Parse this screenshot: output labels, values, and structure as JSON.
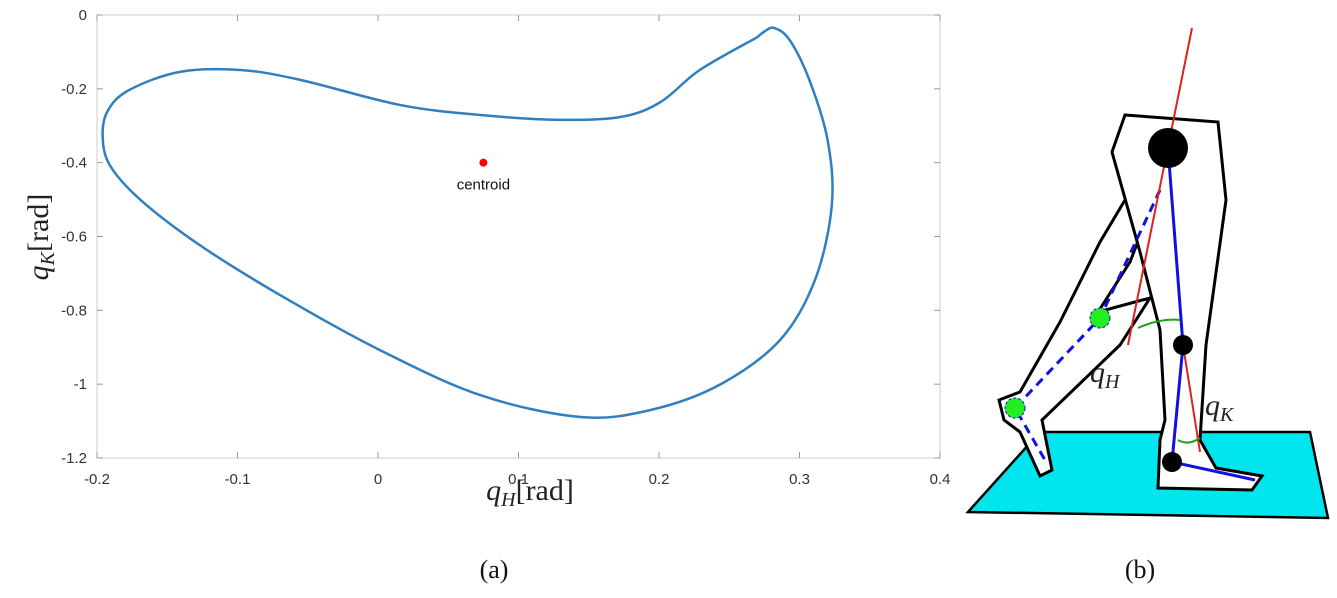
{
  "chart_data": {
    "type": "line",
    "x_label": {
      "symbol": "q",
      "subscript": "H",
      "unit": "[rad]"
    },
    "y_label": {
      "symbol": "q",
      "subscript": "K",
      "unit": "[rad]"
    },
    "series": [
      {
        "color": "#2f7fc1",
        "x": [
          0.27,
          0.229,
          0.201,
          0.173,
          0.13,
          0.073,
          0.016,
          -0.055,
          -0.098,
          -0.141,
          -0.177,
          -0.192,
          -0.196,
          -0.191,
          -0.169,
          -0.127,
          -0.07,
          0.001,
          0.073,
          0.144,
          0.194,
          0.243,
          0.286,
          0.311,
          0.323,
          0.32,
          0.307,
          0.293,
          0.282,
          0.275,
          0.27
        ],
        "values": [
          -0.06,
          -0.149,
          -0.236,
          -0.276,
          -0.284,
          -0.271,
          -0.244,
          -0.176,
          -0.149,
          -0.154,
          -0.203,
          -0.257,
          -0.325,
          -0.406,
          -0.501,
          -0.623,
          -0.758,
          -0.907,
          -1.03,
          -1.089,
          -1.07,
          -1.002,
          -0.881,
          -0.718,
          -0.515,
          -0.339,
          -0.176,
          -0.068,
          -0.035,
          -0.045,
          -0.06
        ]
      }
    ],
    "annotations": [
      {
        "text": "centroid",
        "x": 0.075,
        "y": -0.4,
        "color": "#ff0000"
      }
    ],
    "xlim": [
      -0.2,
      0.4
    ],
    "xticks": [
      -0.2,
      -0.1,
      0,
      0.1,
      0.2,
      0.3,
      0.4
    ],
    "ylim": [
      -1.2,
      0
    ],
    "yticks": [
      0,
      -0.2,
      -0.4,
      -0.6,
      -0.8,
      -1,
      -1.2
    ]
  },
  "diagram": {
    "hip_label": {
      "symbol": "q",
      "subscript": "H"
    },
    "knee_label": {
      "symbol": "q",
      "subscript": "K"
    }
  },
  "captions": [
    "(a)",
    "(b)"
  ]
}
